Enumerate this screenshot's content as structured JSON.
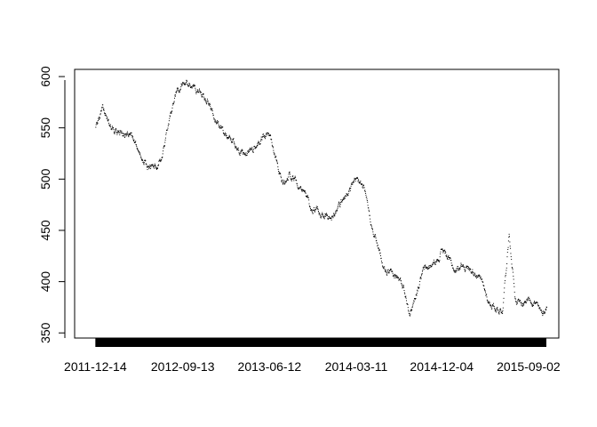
{
  "chart_data": {
    "type": "scatter",
    "title": "",
    "xlabel": "",
    "ylabel": "",
    "x_range": [
      "2011-10-10",
      "2015-12-06"
    ],
    "ylim": [
      345,
      607
    ],
    "y_ticks": [
      350,
      400,
      450,
      500,
      550,
      600
    ],
    "y_tick_labels": [
      "350",
      "400",
      "450",
      "500",
      "550",
      "600"
    ],
    "x_tick_dates": [
      "2011-12-14",
      "2012-09-13",
      "2013-06-12",
      "2014-03-11",
      "2014-12-04",
      "2015-09-02"
    ],
    "x_tick_labels": [
      "2011-12-14",
      "2012-09-13",
      "2013-06-12",
      "2014-03-11",
      "2014-12-04",
      "2015-09-02"
    ],
    "x_axis_tick_band": {
      "from": "2011-12-14",
      "to": "2015-10-28"
    },
    "grid": false,
    "legend": "none",
    "point_color": "#000000",
    "series": [
      {
        "points": [
          [
            "2011-12-14",
            551
          ],
          [
            "2012-01-04",
            570
          ],
          [
            "2012-01-25",
            555
          ],
          [
            "2012-02-15",
            548
          ],
          [
            "2012-03-07",
            543
          ],
          [
            "2012-03-28",
            547
          ],
          [
            "2012-04-18",
            535
          ],
          [
            "2012-05-09",
            522
          ],
          [
            "2012-05-30",
            510
          ],
          [
            "2012-06-20",
            513
          ],
          [
            "2012-07-11",
            526
          ],
          [
            "2012-08-01",
            560
          ],
          [
            "2012-08-22",
            583
          ],
          [
            "2012-09-13",
            595
          ],
          [
            "2012-10-04",
            593
          ],
          [
            "2012-10-25",
            588
          ],
          [
            "2012-11-15",
            583
          ],
          [
            "2012-12-06",
            573
          ],
          [
            "2012-12-27",
            555
          ],
          [
            "2013-01-17",
            547
          ],
          [
            "2013-02-07",
            540
          ],
          [
            "2013-02-28",
            533
          ],
          [
            "2013-03-21",
            522
          ],
          [
            "2013-04-11",
            528
          ],
          [
            "2013-05-02",
            534
          ],
          [
            "2013-05-23",
            540
          ],
          [
            "2013-06-12",
            545
          ],
          [
            "2013-07-03",
            520
          ],
          [
            "2013-07-24",
            494
          ],
          [
            "2013-08-14",
            505
          ],
          [
            "2013-09-04",
            497
          ],
          [
            "2013-09-25",
            493
          ],
          [
            "2013-10-16",
            472
          ],
          [
            "2013-11-06",
            470
          ],
          [
            "2013-11-27",
            466
          ],
          [
            "2013-12-18",
            462
          ],
          [
            "2014-01-08",
            470
          ],
          [
            "2014-01-29",
            482
          ],
          [
            "2014-02-19",
            490
          ],
          [
            "2014-03-11",
            500
          ],
          [
            "2014-04-01",
            492
          ],
          [
            "2014-04-22",
            462
          ],
          [
            "2014-05-13",
            440
          ],
          [
            "2014-06-03",
            413
          ],
          [
            "2014-06-24",
            407
          ],
          [
            "2014-07-15",
            405
          ],
          [
            "2014-08-05",
            396
          ],
          [
            "2014-08-26",
            370
          ],
          [
            "2014-09-16",
            392
          ],
          [
            "2014-10-07",
            412
          ],
          [
            "2014-10-28",
            415
          ],
          [
            "2014-11-18",
            420
          ],
          [
            "2014-12-04",
            433
          ],
          [
            "2014-12-25",
            422
          ],
          [
            "2015-01-15",
            410
          ],
          [
            "2015-02-05",
            418
          ],
          [
            "2015-02-26",
            413
          ],
          [
            "2015-03-19",
            410
          ],
          [
            "2015-04-09",
            398
          ],
          [
            "2015-04-30",
            380
          ],
          [
            "2015-05-21",
            375
          ],
          [
            "2015-06-11",
            372
          ],
          [
            "2015-07-02",
            448
          ],
          [
            "2015-07-23",
            380
          ],
          [
            "2015-08-13",
            378
          ],
          [
            "2015-09-02",
            385
          ],
          [
            "2015-09-23",
            380
          ],
          [
            "2015-10-14",
            367
          ],
          [
            "2015-10-28",
            377
          ]
        ]
      }
    ]
  }
}
